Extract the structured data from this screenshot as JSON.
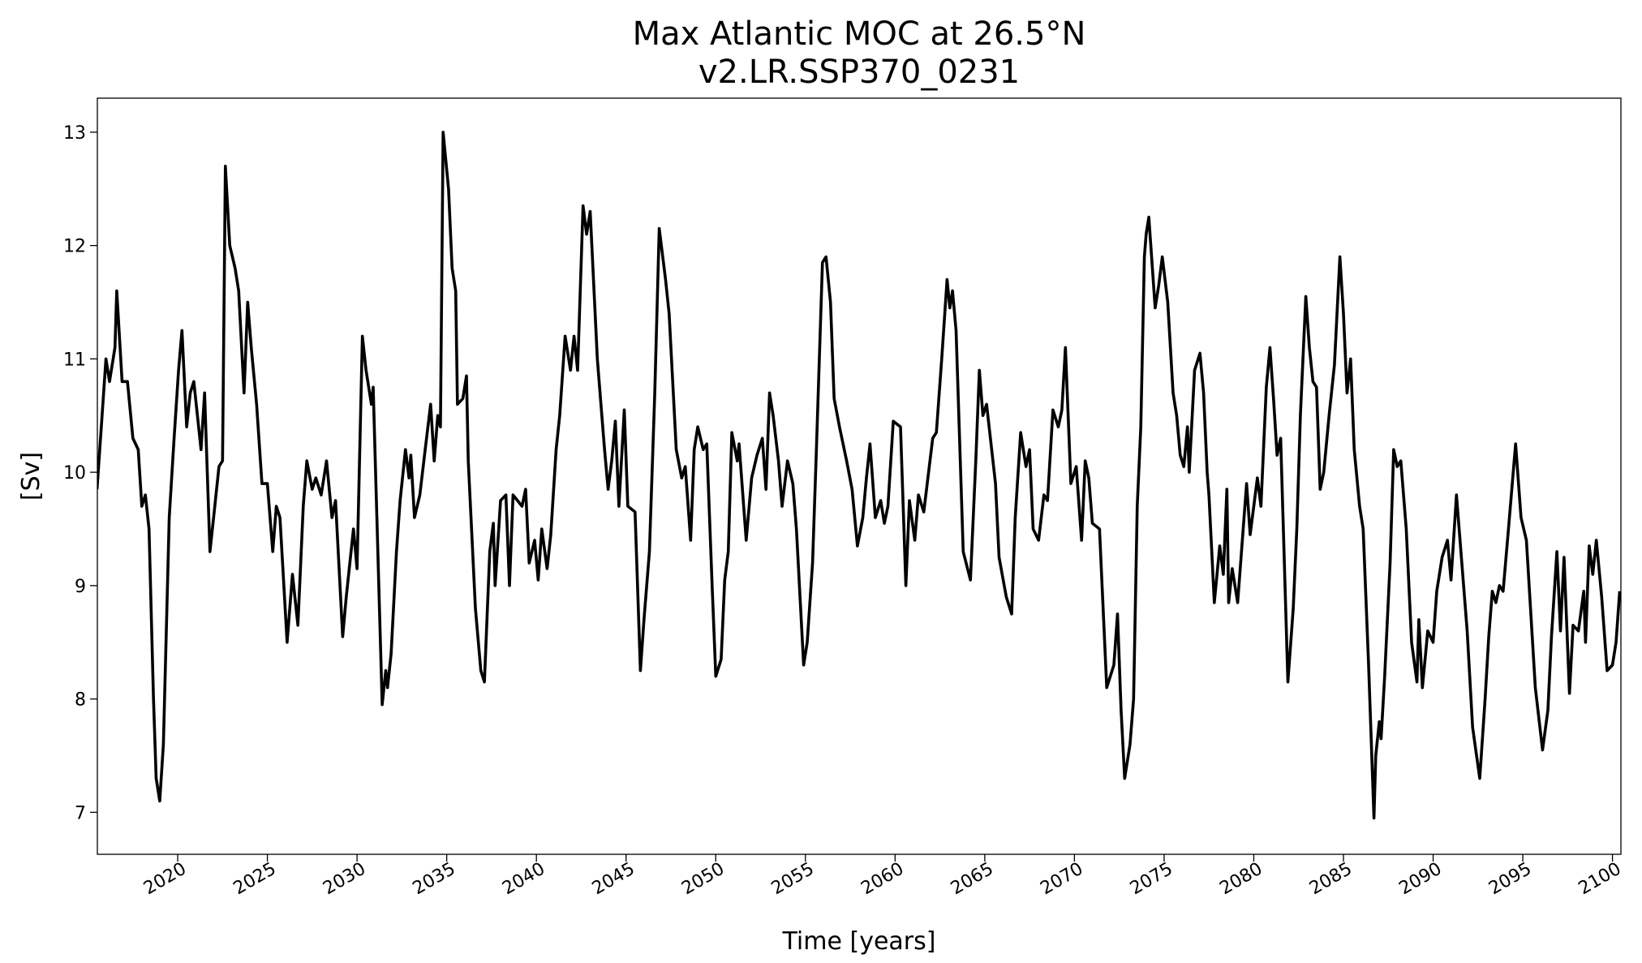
{
  "chart_data": {
    "type": "line",
    "title": "Max Atlantic MOC at 26.5°N",
    "subtitle": "v2.LR.SSP370_0231",
    "xlabel": "Time [years]",
    "ylabel": "[Sv]",
    "xlim": [
      2015.52,
      2100.47
    ],
    "ylim": [
      6.63,
      13.3
    ],
    "xticks": [
      2020,
      2025,
      2030,
      2035,
      2040,
      2045,
      2050,
      2055,
      2060,
      2065,
      2070,
      2075,
      2080,
      2085,
      2090,
      2095,
      2100
    ],
    "yticks": [
      7,
      8,
      9,
      10,
      11,
      12,
      13
    ],
    "grid": false,
    "series": [
      {
        "color": "#000000",
        "x": [
          2015.5,
          2016.0,
          2016.2,
          2016.5,
          2016.6,
          2016.9,
          2017.2,
          2017.5,
          2017.8,
          2018.0,
          2018.2,
          2018.4,
          2018.65,
          2018.8,
          2019.0,
          2019.2,
          2019.53,
          2019.8,
          2020.05,
          2020.24,
          2020.5,
          2020.7,
          2020.9,
          2021.3,
          2021.5,
          2021.8,
          2022.0,
          2022.3,
          2022.5,
          2022.66,
          2022.9,
          2023.2,
          2023.4,
          2023.7,
          2023.9,
          2024.1,
          2024.4,
          2024.7,
          2025.0,
          2025.3,
          2025.5,
          2025.7,
          2026.1,
          2026.4,
          2026.7,
          2027.0,
          2027.2,
          2027.5,
          2027.7,
          2028.0,
          2028.3,
          2028.6,
          2028.8,
          2029.2,
          2029.4,
          2029.8,
          2030.0,
          2030.3,
          2030.5,
          2030.8,
          2030.9,
          2031.4,
          2031.6,
          2031.7,
          2031.9,
          2032.2,
          2032.4,
          2032.7,
          2032.9,
          2033.0,
          2033.2,
          2033.5,
          2033.8,
          2034.1,
          2034.3,
          2034.5,
          2034.65,
          2034.8,
          2035.1,
          2035.3,
          2035.5,
          2035.6,
          2035.9,
          2036.1,
          2036.2,
          2036.6,
          2036.9,
          2037.1,
          2037.4,
          2037.6,
          2037.7,
          2038.0,
          2038.3,
          2038.5,
          2038.7,
          2039.2,
          2039.4,
          2039.6,
          2039.9,
          2040.1,
          2040.3,
          2040.6,
          2040.8,
          2041.1,
          2041.3,
          2041.6,
          2041.9,
          2042.1,
          2042.3,
          2042.6,
          2042.8,
          2043.0,
          2043.4,
          2043.8,
          2044.0,
          2044.2,
          2044.4,
          2044.6,
          2044.9,
          2045.1,
          2045.5,
          2045.8,
          2046.0,
          2046.3,
          2046.6,
          2046.85,
          2047.2,
          2047.4,
          2047.8,
          2048.1,
          2048.3,
          2048.6,
          2048.8,
          2049.0,
          2049.3,
          2049.5,
          2049.8,
          2050.0,
          2050.3,
          2050.5,
          2050.7,
          2050.9,
          2051.2,
          2051.3,
          2051.7,
          2052.0,
          2052.3,
          2052.6,
          2052.8,
          2053.0,
          2053.2,
          2053.5,
          2053.7,
          2054.0,
          2054.3,
          2054.5,
          2054.9,
          2055.1,
          2055.4,
          2055.6,
          2055.95,
          2056.15,
          2056.4,
          2056.6,
          2056.9,
          2057.3,
          2057.6,
          2057.9,
          2058.2,
          2058.4,
          2058.6,
          2058.9,
          2059.2,
          2059.4,
          2059.6,
          2059.9,
          2060.3,
          2060.6,
          2060.8,
          2061.1,
          2061.3,
          2061.6,
          2062.1,
          2062.3,
          2062.6,
          2062.9,
          2063.05,
          2063.2,
          2063.4,
          2063.8,
          2064.2,
          2064.5,
          2064.7,
          2064.9,
          2065.1,
          2065.6,
          2065.8,
          2066.2,
          2066.5,
          2066.7,
          2067.0,
          2067.3,
          2067.5,
          2067.7,
          2068.0,
          2068.3,
          2068.5,
          2068.8,
          2069.1,
          2069.3,
          2069.5,
          2069.8,
          2070.1,
          2070.4,
          2070.6,
          2070.8,
          2071.0,
          2071.4,
          2071.8,
          2072.2,
          2072.4,
          2072.6,
          2072.8,
          2073.1,
          2073.3,
          2073.5,
          2073.7,
          2073.9,
          2074.0,
          2074.15,
          2074.5,
          2074.7,
          2074.9,
          2075.2,
          2075.5,
          2075.7,
          2075.9,
          2076.1,
          2076.3,
          2076.4,
          2076.7,
          2077.0,
          2077.2,
          2077.4,
          2077.5,
          2077.8,
          2078.1,
          2078.3,
          2078.5,
          2078.6,
          2078.8,
          2079.1,
          2079.6,
          2079.8,
          2080.2,
          2080.4,
          2080.7,
          2080.9,
          2081.1,
          2081.3,
          2081.5,
          2081.9,
          2082.2,
          2082.4,
          2082.6,
          2082.9,
          2083.1,
          2083.3,
          2083.5,
          2083.7,
          2083.9,
          2084.2,
          2084.5,
          2084.8,
          2085.0,
          2085.2,
          2085.4,
          2085.6,
          2085.9,
          2086.1,
          2086.4,
          2086.7,
          2086.8,
          2087.0,
          2087.1,
          2087.3,
          2087.6,
          2087.8,
          2088.0,
          2088.2,
          2088.5,
          2088.8,
          2089.1,
          2089.2,
          2089.4,
          2089.7,
          2090.0,
          2090.2,
          2090.5,
          2090.8,
          2091.0,
          2091.3,
          2091.6,
          2091.9,
          2092.2,
          2092.6,
          2092.9,
          2093.1,
          2093.3,
          2093.5,
          2093.7,
          2093.9,
          2094.2,
          2094.6,
          2094.9,
          2095.2,
          2095.7,
          2096.1,
          2096.4,
          2096.6,
          2096.9,
          2097.1,
          2097.3,
          2097.6,
          2097.8,
          2098.1,
          2098.4,
          2098.5,
          2098.7,
          2098.9,
          2099.1,
          2099.4,
          2099.7,
          2100.0,
          2100.2,
          2100.4
        ],
        "values": [
          9.85,
          11.0,
          10.8,
          11.1,
          11.6,
          10.8,
          10.8,
          10.3,
          10.2,
          9.7,
          9.8,
          9.5,
          8.0,
          7.3,
          7.1,
          7.6,
          9.6,
          10.3,
          10.9,
          11.25,
          10.4,
          10.7,
          10.8,
          10.2,
          10.7,
          9.3,
          9.6,
          10.05,
          10.1,
          12.7,
          12.0,
          11.8,
          11.6,
          10.7,
          11.5,
          11.1,
          10.6,
          9.9,
          9.9,
          9.3,
          9.7,
          9.6,
          8.5,
          9.1,
          8.65,
          9.7,
          10.1,
          9.85,
          9.95,
          9.8,
          10.1,
          9.6,
          9.75,
          8.55,
          8.9,
          9.5,
          9.15,
          11.2,
          10.9,
          10.6,
          10.75,
          7.95,
          8.25,
          8.1,
          8.4,
          9.3,
          9.75,
          10.2,
          9.95,
          10.15,
          9.6,
          9.8,
          10.2,
          10.6,
          10.1,
          10.5,
          10.4,
          13.0,
          12.5,
          11.8,
          11.6,
          10.6,
          10.65,
          10.85,
          10.1,
          8.8,
          8.25,
          8.15,
          9.3,
          9.55,
          9.0,
          9.75,
          9.8,
          9.0,
          9.8,
          9.7,
          9.85,
          9.2,
          9.4,
          9.05,
          9.5,
          9.15,
          9.45,
          10.2,
          10.5,
          11.2,
          10.9,
          11.2,
          10.9,
          12.35,
          12.1,
          12.3,
          11.0,
          10.2,
          9.85,
          10.1,
          10.45,
          9.7,
          10.55,
          9.7,
          9.65,
          8.25,
          8.7,
          9.3,
          10.7,
          12.15,
          11.7,
          11.4,
          10.2,
          9.95,
          10.05,
          9.4,
          10.2,
          10.4,
          10.2,
          10.25,
          9.0,
          8.2,
          8.35,
          9.05,
          9.3,
          10.35,
          10.1,
          10.25,
          9.4,
          9.95,
          10.15,
          10.3,
          9.85,
          10.7,
          10.5,
          10.1,
          9.7,
          10.1,
          9.9,
          9.5,
          8.3,
          8.5,
          9.2,
          10.15,
          11.85,
          11.9,
          11.5,
          10.65,
          10.4,
          10.1,
          9.85,
          9.35,
          9.6,
          9.95,
          10.25,
          9.6,
          9.75,
          9.55,
          9.7,
          10.45,
          10.4,
          9.0,
          9.75,
          9.4,
          9.8,
          9.65,
          10.3,
          10.35,
          11.0,
          11.7,
          11.45,
          11.6,
          11.25,
          9.3,
          9.05,
          10.1,
          10.9,
          10.5,
          10.6,
          9.9,
          9.25,
          8.9,
          8.75,
          9.6,
          10.35,
          10.05,
          10.2,
          9.5,
          9.4,
          9.8,
          9.75,
          10.55,
          10.4,
          10.55,
          11.1,
          9.9,
          10.05,
          9.4,
          10.1,
          9.95,
          9.55,
          9.5,
          8.1,
          8.3,
          8.75,
          7.9,
          7.3,
          7.6,
          8.0,
          9.7,
          10.4,
          11.9,
          12.1,
          12.25,
          11.45,
          11.65,
          11.9,
          11.5,
          10.7,
          10.5,
          10.15,
          10.05,
          10.4,
          10.0,
          10.9,
          11.05,
          10.7,
          10.0,
          9.8,
          8.85,
          9.35,
          9.1,
          9.85,
          8.85,
          9.15,
          8.85,
          9.9,
          9.45,
          9.95,
          9.7,
          10.75,
          11.1,
          10.65,
          10.15,
          10.3,
          8.15,
          8.8,
          9.5,
          10.5,
          11.55,
          11.1,
          10.8,
          10.75,
          9.85,
          10.0,
          10.5,
          10.95,
          11.9,
          11.4,
          10.7,
          11.0,
          10.2,
          9.7,
          9.5,
          8.3,
          6.95,
          7.5,
          7.8,
          7.65,
          8.2,
          9.2,
          10.2,
          10.05,
          10.1,
          9.5,
          8.5,
          8.15,
          8.7,
          8.1,
          8.6,
          8.5,
          8.95,
          9.25,
          9.4,
          9.05,
          9.8,
          9.2,
          8.6,
          7.75,
          7.3,
          8.0,
          8.55,
          8.95,
          8.85,
          9.0,
          8.95,
          9.5,
          10.25,
          9.6,
          9.4,
          8.1,
          7.55,
          7.9,
          8.55,
          9.3,
          8.6,
          9.25,
          8.05,
          8.65,
          8.6,
          8.95,
          8.5,
          9.35,
          9.1,
          9.4,
          8.9,
          8.25,
          8.3,
          8.5,
          8.95
        ]
      }
    ]
  }
}
